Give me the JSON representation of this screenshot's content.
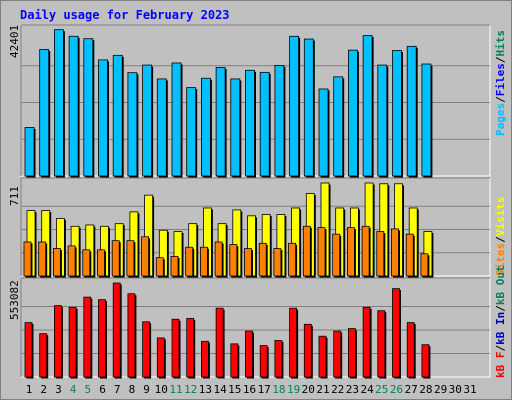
{
  "chart_data": {
    "type": "bar",
    "title": "Daily usage for February 2023",
    "categories": [
      "1",
      "2",
      "3",
      "4",
      "5",
      "6",
      "7",
      "8",
      "9",
      "10",
      "11",
      "12",
      "13",
      "14",
      "15",
      "16",
      "17",
      "18",
      "19",
      "20",
      "21",
      "22",
      "23",
      "24",
      "25",
      "26",
      "27",
      "28",
      "29",
      "30",
      "31"
    ],
    "weekend_days": [
      4,
      5,
      11,
      12,
      18,
      19,
      25,
      26
    ],
    "panels": [
      {
        "id": "hits-files-pages",
        "max_label": "42401",
        "max": 42401,
        "series": [
          {
            "name": "Hits",
            "color": "#00805c",
            "values": [
              14000,
              36500,
              42200,
              40300,
              39600,
              33500,
              34800,
              29800,
              32000,
              28000,
              32600,
              25500,
              28200,
              31300,
              28000,
              30500,
              29900,
              31900,
              40300,
              39500,
              25100,
              28600,
              36300,
              40500,
              32000,
              36200,
              37400,
              32300,
              null,
              null,
              null
            ]
          },
          {
            "name": "Files",
            "color": "#0000ff",
            "values": [
              14000,
              36500,
              42200,
              40300,
              39600,
              33500,
              34800,
              29800,
              32000,
              28000,
              32600,
              25500,
              28200,
              31300,
              28000,
              30500,
              29900,
              31900,
              40300,
              39500,
              25100,
              28600,
              36300,
              40500,
              32000,
              36200,
              37400,
              32300,
              null,
              null,
              null
            ]
          },
          {
            "name": "Pages",
            "color": "#00c0ff",
            "values": [
              14000,
              36500,
              42200,
              40300,
              39600,
              33500,
              34800,
              29800,
              32000,
              28000,
              32600,
              25500,
              28200,
              31300,
              28000,
              30500,
              29900,
              31900,
              40300,
              39500,
              25100,
              28600,
              36300,
              40500,
              32000,
              36200,
              37400,
              32300,
              null,
              null,
              null
            ]
          }
        ]
      },
      {
        "id": "visits-sites",
        "max_label": "711",
        "max": 711,
        "series": [
          {
            "name": "Visits",
            "color": "#ffff00",
            "values": [
              500,
              500,
              440,
              380,
              390,
              380,
              400,
              490,
              618,
              350,
              340,
              400,
              520,
              400,
              505,
              460,
              470,
              470,
              520,
              630,
              711,
              520,
              520,
              711,
              705,
              705,
              520,
              340,
              null,
              null,
              null
            ]
          },
          {
            "name": "Sites",
            "color": "#ff8000",
            "values": [
              260,
              260,
              210,
              230,
              200,
              200,
              270,
              270,
              300,
              140,
              150,
              220,
              220,
              260,
              240,
              210,
              250,
              210,
              250,
              380,
              370,
              320,
              370,
              380,
              340,
              360,
              320,
              170,
              null,
              null,
              null
            ]
          }
        ]
      },
      {
        "id": "kb",
        "max_label": "553082",
        "max": 553082,
        "series": [
          {
            "name": "kB F",
            "color": "#ff0000",
            "values": [
              320000,
              255000,
              420000,
              410000,
              470000,
              455000,
              553082,
              490000,
              325000,
              230000,
              340000,
              345000,
              210000,
              405000,
              195000,
              270000,
              185000,
              215000,
              405000,
              310000,
              240000,
              270000,
              285000,
              410000,
              390000,
              520000,
              320000,
              190000,
              null,
              null,
              null
            ]
          },
          {
            "name": "kB In",
            "color": "#0000c0",
            "values": []
          },
          {
            "name": "kB Out",
            "color": "#00805c",
            "values": []
          }
        ]
      }
    ],
    "legend_placement": "right-vertical",
    "grid": true
  }
}
